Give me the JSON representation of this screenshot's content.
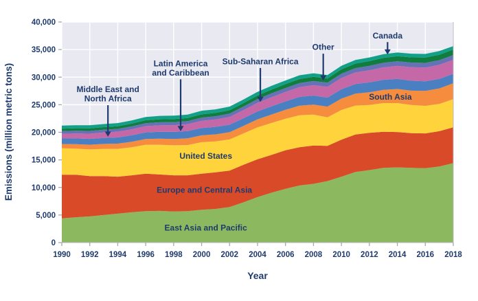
{
  "chart_data": {
    "type": "area",
    "stacked": true,
    "title": "",
    "xlabel": "Year",
    "ylabel": "Emissions (million metric tons)",
    "ylim": [
      0,
      40000
    ],
    "grid": true,
    "years": [
      1990,
      1991,
      1992,
      1993,
      1994,
      1995,
      1996,
      1997,
      1998,
      1999,
      2000,
      2001,
      2002,
      2003,
      2004,
      2005,
      2006,
      2007,
      2008,
      2009,
      2010,
      2011,
      2012,
      2013,
      2014,
      2015,
      2016,
      2017,
      2018
    ],
    "x_tick_labels": [
      "1990",
      "1992",
      "1994",
      "1996",
      "1998",
      "2000",
      "2002",
      "2004",
      "2006",
      "2008",
      "2010",
      "2012",
      "2014",
      "2016",
      "2018"
    ],
    "x_tick_years": [
      1990,
      1992,
      1994,
      1996,
      1998,
      2000,
      2002,
      2004,
      2006,
      2008,
      2010,
      2012,
      2014,
      2016,
      2018
    ],
    "y_tick_values": [
      0,
      5000,
      10000,
      15000,
      20000,
      25000,
      30000,
      35000,
      40000
    ],
    "y_tick_labels": [
      "0",
      "5,000",
      "10,000",
      "15,000",
      "20,000",
      "25,000",
      "30,000",
      "35,000",
      "40,000"
    ],
    "series": [
      {
        "name": "East Asia and Pacific",
        "color": "#8CB95F",
        "values": [
          4400,
          4600,
          4750,
          5000,
          5250,
          5500,
          5700,
          5750,
          5650,
          5700,
          5950,
          6100,
          6450,
          7300,
          8250,
          9050,
          9750,
          10350,
          10650,
          11150,
          11950,
          12800,
          13150,
          13550,
          13650,
          13550,
          13500,
          13800,
          14400
        ]
      },
      {
        "name": "Europe and Central Asia",
        "color": "#D94A28",
        "values": [
          7900,
          7700,
          7300,
          7050,
          6700,
          6700,
          6800,
          6600,
          6550,
          6500,
          6550,
          6650,
          6600,
          6800,
          6850,
          6850,
          7000,
          6950,
          6950,
          6400,
          6700,
          6800,
          6750,
          6550,
          6400,
          6300,
          6300,
          6400,
          6500
        ]
      },
      {
        "name": "United States",
        "color": "#FFD33C",
        "values": [
          4800,
          4750,
          4850,
          4950,
          5050,
          5100,
          5250,
          5400,
          5450,
          5500,
          5700,
          5600,
          5650,
          5700,
          5800,
          5800,
          5700,
          5800,
          5600,
          5150,
          5400,
          5250,
          5050,
          5200,
          5250,
          5100,
          5000,
          4950,
          5100
        ]
      },
      {
        "name": "South Asia",
        "color": "#F68C3E",
        "values": [
          780,
          810,
          850,
          890,
          940,
          990,
          1040,
          1090,
          1130,
          1200,
          1250,
          1280,
          1310,
          1370,
          1450,
          1530,
          1620,
          1720,
          1820,
          1960,
          2050,
          2150,
          2300,
          2400,
          2550,
          2600,
          2700,
          2800,
          2900
        ]
      },
      {
        "name": "Latin America and Caribbean",
        "color": "#4A80C2",
        "values": [
          1000,
          1030,
          1050,
          1080,
          1120,
          1160,
          1200,
          1260,
          1300,
          1310,
          1340,
          1350,
          1360,
          1380,
          1440,
          1490,
          1540,
          1600,
          1650,
          1620,
          1700,
          1750,
          1800,
          1820,
          1840,
          1800,
          1750,
          1720,
          1700
        ]
      },
      {
        "name": "Middle East and North Africa",
        "color": "#C468A8",
        "values": [
          850,
          900,
          950,
          1000,
          1050,
          1100,
          1130,
          1160,
          1200,
          1250,
          1300,
          1350,
          1420,
          1480,
          1560,
          1650,
          1720,
          1780,
          1880,
          1980,
          2050,
          2100,
          2200,
          2250,
          2350,
          2450,
          2500,
          2550,
          2550
        ]
      },
      {
        "name": "Sub-Saharan Africa",
        "color": "#6672B5",
        "values": [
          480,
          490,
          500,
          500,
          510,
          520,
          540,
          560,
          560,
          570,
          580,
          590,
          610,
          640,
          670,
          690,
          700,
          720,
          740,
          750,
          770,
          790,
          810,
          830,
          850,
          850,
          840,
          850,
          860
        ]
      },
      {
        "name": "Other",
        "color": "#107C3D",
        "values": [
          450,
          460,
          460,
          470,
          480,
          500,
          520,
          540,
          550,
          560,
          580,
          590,
          600,
          620,
          650,
          680,
          710,
          740,
          760,
          740,
          790,
          820,
          850,
          880,
          900,
          930,
          950,
          980,
          1000
        ]
      },
      {
        "name": "Canada",
        "color": "#12A089",
        "values": [
          550,
          545,
          555,
          560,
          575,
          590,
          605,
          620,
          625,
          630,
          660,
          650,
          655,
          670,
          670,
          680,
          660,
          680,
          660,
          620,
          640,
          660,
          660,
          670,
          680,
          670,
          660,
          680,
          620
        ]
      }
    ],
    "inline_labels": [
      {
        "lines": [
          "East Asia and Pacific"
        ],
        "year": 2000.3,
        "value": 2650
      },
      {
        "lines": [
          "Europe and Central Asia"
        ],
        "year": 2000.2,
        "value": 9550
      },
      {
        "lines": [
          "United States"
        ],
        "year": 2000.3,
        "value": 15700
      },
      {
        "lines": [
          "South Asia"
        ],
        "year": 2013.5,
        "value": 26400
      }
    ],
    "arrow_labels": [
      {
        "lines": [
          "Middle East and",
          "North Africa"
        ],
        "year": 1993.3,
        "label_value": 27000,
        "tip_value": 19200
      },
      {
        "lines": [
          "Latin America",
          "and Caribbean"
        ],
        "year": 1998.5,
        "label_value": 31700,
        "tip_value": 20200
      },
      {
        "lines": [
          "Sub-Saharan Africa"
        ],
        "year": 2004.2,
        "label_value": 32900,
        "tip_value": 25500
      },
      {
        "lines": [
          "Other"
        ],
        "year": 2008.7,
        "label_value": 35500,
        "tip_value": 29400
      },
      {
        "lines": [
          "Canada"
        ],
        "year": 2013.3,
        "label_value": 37600,
        "tip_value": 34100
      }
    ]
  },
  "style": {
    "text_color": "#1F3A6D",
    "plot_bg": "#E9E9F2",
    "grid_color": "#FFFFFF",
    "tick_color": "#A6A6B0",
    "axis_line_color": "#B9B9C2"
  }
}
